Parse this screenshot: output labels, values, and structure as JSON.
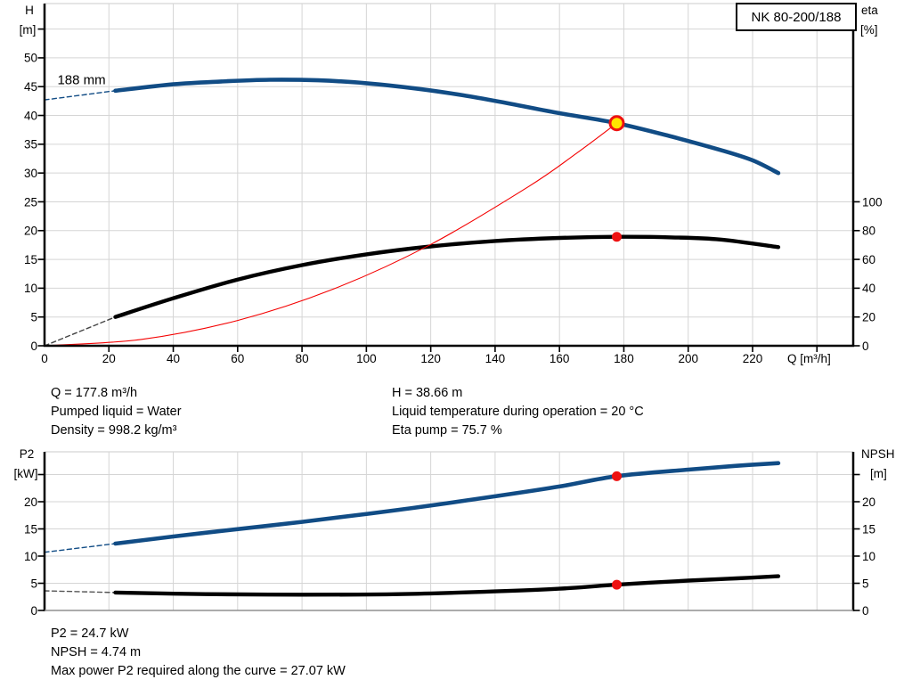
{
  "pump_model": "NK 80-200/188",
  "colors": {
    "curve_blue": "#114c85",
    "curve_black": "#000000",
    "curve_red": "#f40000",
    "marker_red": "#ee1111",
    "marker_yellow": "#ffe400",
    "grid": "#d5d5d5",
    "axis": "#000000",
    "axis_gray": "#8f8f8f"
  },
  "info_top": {
    "col1": [
      "Q = 177.8 m³/h",
      "Pumped liquid = Water",
      "Density = 998.2 kg/m³"
    ],
    "col2": [
      "H = 38.66 m",
      "Liquid temperature during operation = 20 °C",
      "Eta pump = 75.7 %"
    ]
  },
  "info_bottom": [
    "P2 = 24.7 kW",
    "NPSH = 4.74 m",
    "Max power P2 required along the curve = 27.07 kW"
  ],
  "chart_data": [
    {
      "type": "line",
      "name": "head-efficiency-chart",
      "title": "NK 80-200/188",
      "x_axis": {
        "label": "Q [m³/h]",
        "min": 0,
        "max": 251,
        "labeled_ticks": [
          0,
          20,
          40,
          60,
          80,
          100,
          120,
          140,
          160,
          180,
          200,
          220
        ],
        "tick_marks": [
          20,
          40,
          60,
          80,
          100,
          120,
          140,
          160,
          180,
          200,
          220,
          240
        ],
        "grid": [
          20,
          40,
          60,
          80,
          100,
          120,
          140,
          160,
          180,
          200,
          220,
          240
        ]
      },
      "left_axis": {
        "label_lines": [
          "H",
          "[m]"
        ],
        "min": 0,
        "max": 59.5,
        "labeled_ticks": [
          0,
          5,
          10,
          15,
          20,
          25,
          30,
          35,
          40,
          45,
          50
        ],
        "unlabeled_ticks": [
          55
        ],
        "grid": [
          5,
          10,
          15,
          20,
          25,
          30,
          35,
          40,
          45,
          50,
          55
        ]
      },
      "right_axis": {
        "label_lines": [
          "eta",
          "[%]"
        ],
        "min": 0,
        "max": 120,
        "labeled_ticks": [
          0,
          20,
          40,
          60,
          80,
          100
        ],
        "unlabeled_ticks": []
      },
      "series": [
        {
          "name": "head-curve-dashed",
          "axis": "left",
          "style": "dashed",
          "color": "#114c85",
          "width": 1.4,
          "points": [
            [
              0,
              42.7
            ],
            [
              22,
              44.3
            ]
          ]
        },
        {
          "name": "head-curve-188mm",
          "axis": "left",
          "style": "solid",
          "color": "#114c85",
          "width": 4.6,
          "points": [
            [
              22,
              44.3
            ],
            [
              40,
              45.4
            ],
            [
              55,
              45.9
            ],
            [
              70,
              46.2
            ],
            [
              85,
              46.1
            ],
            [
              100,
              45.6
            ],
            [
              115,
              44.7
            ],
            [
              130,
              43.5
            ],
            [
              145,
              42.0
            ],
            [
              160,
              40.4
            ],
            [
              177.8,
              38.66
            ],
            [
              195,
              36.3
            ],
            [
              210,
              34.0
            ],
            [
              220,
              32.2
            ],
            [
              228,
              30.0
            ]
          ]
        },
        {
          "name": "efficiency-curve-dashed",
          "axis": "right",
          "style": "dashed",
          "color": "#444444",
          "width": 1.4,
          "points": [
            [
              0,
              0
            ],
            [
              22,
              20
            ]
          ]
        },
        {
          "name": "efficiency-curve",
          "axis": "right",
          "style": "solid",
          "color": "#000000",
          "width": 4.4,
          "points": [
            [
              22,
              20
            ],
            [
              40,
              33
            ],
            [
              60,
              46
            ],
            [
              80,
              56
            ],
            [
              100,
              63.5
            ],
            [
              120,
              69
            ],
            [
              140,
              72.8
            ],
            [
              160,
              74.9
            ],
            [
              177.8,
              75.7
            ],
            [
              195,
              75.3
            ],
            [
              210,
              73.8
            ],
            [
              228,
              68.5
            ]
          ]
        },
        {
          "name": "system-curve",
          "axis": "left",
          "style": "solid",
          "color": "#f40000",
          "width": 1.1,
          "points": [
            [
              0,
              0
            ],
            [
              30,
              1.1
            ],
            [
              60,
              4.4
            ],
            [
              90,
              9.9
            ],
            [
              120,
              17.6
            ],
            [
              150,
              27.5
            ],
            [
              165,
              33.3
            ],
            [
              177.8,
              38.66
            ]
          ]
        }
      ],
      "markers": [
        {
          "name": "duty-point-marker",
          "axis": "left",
          "x": 177.8,
          "value": 38.66,
          "style": "ring",
          "fill": "#ffe400",
          "stroke": "#ee1111",
          "r": 7.5
        },
        {
          "name": "efficiency-point-marker",
          "axis": "right",
          "x": 177.8,
          "value": 75.7,
          "style": "dot",
          "fill": "#ee1111",
          "r": 5.5
        }
      ],
      "annotations": [
        {
          "name": "impeller-size-label",
          "text": "188 mm",
          "at": [
            4,
            45.4
          ]
        }
      ]
    },
    {
      "type": "line",
      "name": "power-npsh-chart",
      "x_axis": {
        "label": "",
        "min": 0,
        "max": 251,
        "labeled_ticks": [],
        "tick_marks": [],
        "grid": [
          20,
          40,
          60,
          80,
          100,
          120,
          140,
          160,
          180,
          200,
          220,
          240
        ]
      },
      "left_axis": {
        "label_lines": [
          "P2",
          "[kW]"
        ],
        "min": 0,
        "max": 29.2,
        "labeled_ticks": [
          0,
          5,
          10,
          15,
          20
        ],
        "unlabeled_ticks": [
          25
        ],
        "grid": [
          5,
          10,
          15,
          20,
          25
        ]
      },
      "right_axis": {
        "label_lines": [
          "NPSH",
          "[m]"
        ],
        "min": 0,
        "max": 29.2,
        "labeled_ticks": [
          0,
          5,
          10,
          15,
          20
        ],
        "unlabeled_ticks": [
          25
        ]
      },
      "series": [
        {
          "name": "power-curve-dashed",
          "axis": "left",
          "style": "dashed",
          "color": "#114c85",
          "width": 1.4,
          "points": [
            [
              0,
              10.7
            ],
            [
              22,
              12.3
            ]
          ]
        },
        {
          "name": "power-curve",
          "axis": "left",
          "style": "solid",
          "color": "#114c85",
          "width": 4.6,
          "points": [
            [
              22,
              12.3
            ],
            [
              50,
              14.3
            ],
            [
              80,
              16.3
            ],
            [
              110,
              18.5
            ],
            [
              140,
              21.0
            ],
            [
              160,
              22.8
            ],
            [
              177.8,
              24.7
            ],
            [
              200,
              25.9
            ],
            [
              215,
              26.6
            ],
            [
              228,
              27.1
            ]
          ]
        },
        {
          "name": "npsh-curve-dashed",
          "axis": "right",
          "style": "dashed",
          "color": "#555555",
          "width": 1.4,
          "points": [
            [
              0,
              3.6
            ],
            [
              22,
              3.3
            ]
          ]
        },
        {
          "name": "npsh-curve",
          "axis": "right",
          "style": "solid",
          "color": "#000000",
          "width": 4.4,
          "points": [
            [
              22,
              3.3
            ],
            [
              50,
              3.0
            ],
            [
              80,
              2.9
            ],
            [
              110,
              3.0
            ],
            [
              140,
              3.5
            ],
            [
              160,
              4.0
            ],
            [
              177.8,
              4.74
            ],
            [
              200,
              5.5
            ],
            [
              215,
              5.9
            ],
            [
              228,
              6.3
            ]
          ]
        }
      ],
      "markers": [
        {
          "name": "power-point-marker",
          "axis": "left",
          "x": 177.8,
          "value": 24.7,
          "style": "dot",
          "fill": "#ee1111",
          "r": 5.5
        },
        {
          "name": "npsh-point-marker",
          "axis": "right",
          "x": 177.8,
          "value": 4.74,
          "style": "dot",
          "fill": "#ee1111",
          "r": 5.5
        }
      ],
      "annotations": []
    }
  ]
}
